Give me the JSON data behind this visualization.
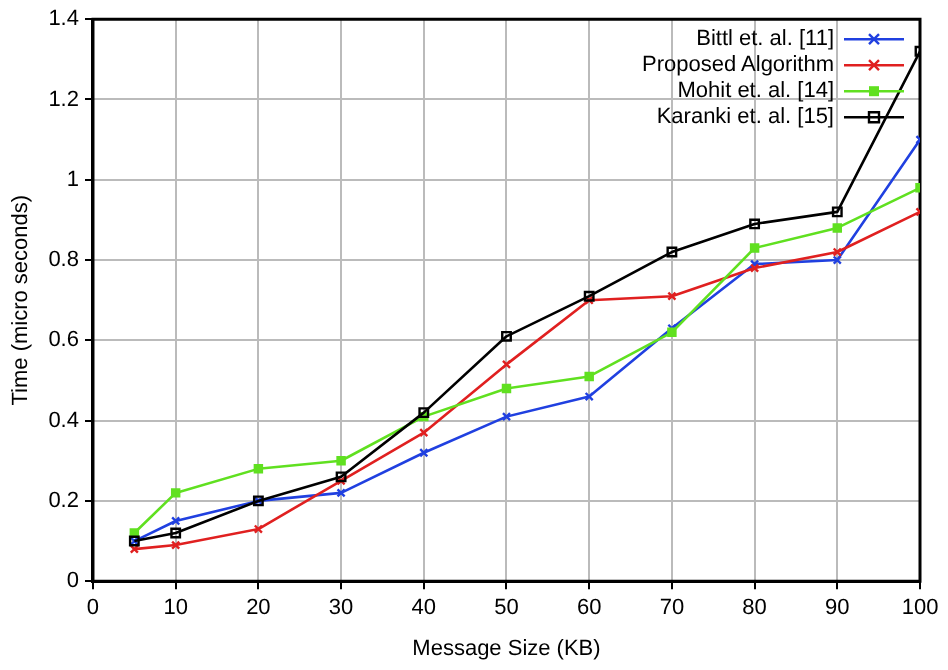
{
  "chart_data": {
    "type": "line",
    "xlabel": "Message Size (KB)",
    "ylabel": "Time (micro seconds)",
    "x": [
      5,
      10,
      20,
      30,
      40,
      50,
      60,
      70,
      80,
      90,
      100
    ],
    "xlim": [
      0,
      100
    ],
    "xticks": [
      0,
      10,
      20,
      30,
      40,
      50,
      60,
      70,
      80,
      90,
      100
    ],
    "ylim": [
      0,
      1.4
    ],
    "yticks": [
      0,
      0.2,
      0.4,
      0.6,
      0.8,
      1,
      1.2,
      1.4
    ],
    "grid": true,
    "legend": "top right",
    "line_style": "solid",
    "series": [
      {
        "name": "Bittl et. al. [11]",
        "color": "#2040e0",
        "marker": "cross",
        "values": [
          0.1,
          0.15,
          0.2,
          0.22,
          0.32,
          0.41,
          0.46,
          0.63,
          0.79,
          0.8,
          1.1
        ]
      },
      {
        "name": "Proposed Algorithm",
        "color": "#e02020",
        "marker": "cross",
        "values": [
          0.08,
          0.09,
          0.13,
          0.25,
          0.37,
          0.54,
          0.7,
          0.71,
          0.78,
          0.82,
          0.92
        ]
      },
      {
        "name": "Mohit et. al. [14]",
        "color": "#60e020",
        "marker": "square",
        "values": [
          0.12,
          0.22,
          0.28,
          0.3,
          0.41,
          0.48,
          0.51,
          0.62,
          0.83,
          0.88,
          0.98
        ]
      },
      {
        "name": "Karanki et. al. [15]",
        "color": "#000000",
        "marker": "square",
        "values": [
          0.1,
          0.12,
          0.2,
          0.26,
          0.42,
          0.61,
          0.71,
          0.82,
          0.89,
          0.92,
          1.32
        ]
      }
    ]
  }
}
